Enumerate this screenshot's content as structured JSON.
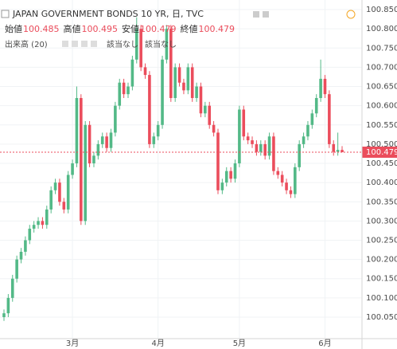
{
  "chart_data": {
    "type": "candlestick",
    "symbol": "JAPAN GOVERNMENT BONDS 10 YR, 日, TVC",
    "ohlc_labels": [
      "始値",
      "高値",
      "安値",
      "終値"
    ],
    "indicator": "出来高 (20)",
    "indicator_values": [
      "該当なし",
      "該当なし"
    ],
    "up_color": "#53b987",
    "down_color": "#eb4d5c",
    "ylim": [
      99.994,
      100.875
    ],
    "yticks": [
      {
        "value": 100.05,
        "label": "100.050"
      },
      {
        "value": 100.1,
        "label": "100.100"
      },
      {
        "value": 100.15,
        "label": "100.150"
      },
      {
        "value": 100.2,
        "label": "100.200"
      },
      {
        "value": 100.25,
        "label": "100.250"
      },
      {
        "value": 100.3,
        "label": "100.300"
      },
      {
        "value": 100.35,
        "label": "100.350"
      },
      {
        "value": 100.4,
        "label": "100.400"
      },
      {
        "value": 100.45,
        "label": "100.450"
      },
      {
        "value": 100.5,
        "label": "100.500"
      },
      {
        "value": 100.55,
        "label": "100.550"
      },
      {
        "value": 100.6,
        "label": "100.600"
      },
      {
        "value": 100.65,
        "label": "100.650"
      },
      {
        "value": 100.7,
        "label": "100.700"
      },
      {
        "value": 100.75,
        "label": "100.750"
      },
      {
        "value": 100.8,
        "label": "100.800"
      },
      {
        "value": 100.85,
        "label": "100.850"
      }
    ],
    "grid": true,
    "categories": [
      null,
      null,
      null,
      null,
      null,
      null,
      null,
      null,
      null,
      null,
      null,
      null,
      null,
      null,
      null,
      null,
      "3月",
      null,
      null,
      null,
      null,
      null,
      null,
      null,
      null,
      null,
      null,
      null,
      null,
      null,
      null,
      null,
      null,
      null,
      null,
      null,
      "4月",
      null,
      null,
      null,
      null,
      null,
      null,
      null,
      null,
      null,
      null,
      null,
      null,
      null,
      null,
      null,
      null,
      null,
      null,
      "5月",
      null,
      null,
      null,
      null,
      null,
      null,
      null,
      null,
      null,
      null,
      null,
      null,
      null,
      null,
      null,
      null,
      null,
      null,
      null,
      "6月",
      null,
      null,
      null,
      null
    ],
    "open": [
      100.05,
      100.06,
      100.1,
      100.15,
      100.2,
      100.22,
      100.25,
      100.28,
      100.29,
      100.3,
      100.29,
      100.33,
      100.38,
      100.4,
      100.35,
      100.33,
      100.42,
      100.45,
      100.62,
      100.3,
      100.55,
      100.45,
      100.47,
      100.5,
      100.52,
      100.49,
      100.53,
      100.6,
      100.66,
      100.63,
      100.65,
      100.72,
      100.8,
      100.7,
      100.68,
      100.5,
      100.52,
      100.55,
      100.72,
      100.8,
      100.62,
      100.7,
      100.66,
      100.64,
      100.7,
      100.62,
      100.65,
      100.58,
      100.6,
      100.55,
      100.53,
      100.38,
      100.4,
      100.43,
      100.41,
      100.45,
      100.59,
      100.52,
      100.51,
      100.5,
      100.48,
      100.5,
      100.47,
      100.52,
      100.43,
      100.42,
      100.4,
      100.38,
      100.37,
      100.44,
      100.5,
      100.52,
      100.55,
      100.58,
      100.62,
      100.67,
      100.63,
      100.5,
      100.48,
      100.485
    ],
    "high": [
      100.07,
      100.11,
      100.16,
      100.21,
      100.23,
      100.26,
      100.29,
      100.3,
      100.31,
      100.31,
      100.34,
      100.39,
      100.41,
      100.41,
      100.36,
      100.43,
      100.46,
      100.65,
      100.63,
      100.56,
      100.56,
      100.48,
      100.51,
      100.53,
      100.53,
      100.54,
      100.61,
      100.67,
      100.67,
      100.66,
      100.73,
      100.83,
      100.81,
      100.71,
      100.69,
      100.53,
      100.56,
      100.73,
      100.81,
      100.81,
      100.71,
      100.71,
      100.67,
      100.71,
      100.71,
      100.66,
      100.66,
      100.61,
      100.61,
      100.56,
      100.54,
      100.41,
      100.44,
      100.44,
      100.46,
      100.6,
      100.6,
      100.53,
      100.52,
      100.51,
      100.51,
      100.51,
      100.53,
      100.53,
      100.44,
      100.43,
      100.41,
      100.39,
      100.45,
      100.51,
      100.53,
      100.56,
      100.59,
      100.63,
      100.72,
      100.68,
      100.64,
      100.51,
      100.53,
      100.495
    ],
    "low": [
      100.04,
      100.05,
      100.09,
      100.14,
      100.19,
      100.21,
      100.24,
      100.27,
      100.28,
      100.28,
      100.28,
      100.32,
      100.37,
      100.34,
      100.32,
      100.32,
      100.41,
      100.44,
      100.29,
      100.29,
      100.44,
      100.44,
      100.46,
      100.49,
      100.48,
      100.48,
      100.52,
      100.59,
      100.62,
      100.62,
      100.64,
      100.71,
      100.69,
      100.67,
      100.49,
      100.49,
      100.51,
      100.54,
      100.71,
      100.61,
      100.61,
      100.65,
      100.63,
      100.63,
      100.61,
      100.61,
      100.57,
      100.57,
      100.54,
      100.52,
      100.37,
      100.37,
      100.39,
      100.4,
      100.4,
      100.44,
      100.51,
      100.5,
      100.49,
      100.47,
      100.47,
      100.46,
      100.46,
      100.42,
      100.41,
      100.39,
      100.37,
      100.36,
      100.36,
      100.43,
      100.49,
      100.51,
      100.54,
      100.57,
      100.61,
      100.62,
      100.49,
      100.47,
      100.47,
      100.479
    ],
    "close": [
      100.06,
      100.1,
      100.15,
      100.2,
      100.22,
      100.25,
      100.28,
      100.29,
      100.3,
      100.29,
      100.33,
      100.38,
      100.4,
      100.35,
      100.33,
      100.42,
      100.45,
      100.62,
      100.3,
      100.55,
      100.45,
      100.47,
      100.5,
      100.52,
      100.49,
      100.53,
      100.6,
      100.66,
      100.63,
      100.65,
      100.72,
      100.8,
      100.7,
      100.68,
      100.5,
      100.52,
      100.55,
      100.72,
      100.8,
      100.62,
      100.7,
      100.66,
      100.64,
      100.7,
      100.62,
      100.65,
      100.58,
      100.6,
      100.55,
      100.53,
      100.38,
      100.4,
      100.43,
      100.41,
      100.45,
      100.59,
      100.52,
      100.51,
      100.5,
      100.48,
      100.5,
      100.47,
      100.52,
      100.43,
      100.42,
      100.4,
      100.38,
      100.37,
      100.44,
      100.5,
      100.52,
      100.55,
      100.58,
      100.62,
      100.67,
      100.63,
      100.5,
      100.48,
      100.485,
      100.479
    ]
  }
}
